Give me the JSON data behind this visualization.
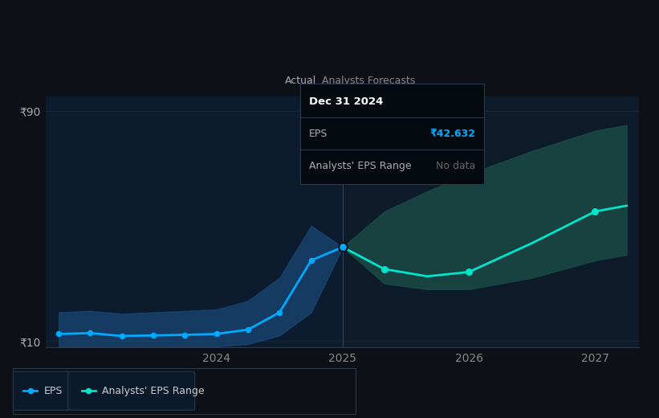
{
  "bg_color": "#0d1117",
  "plot_bg_color": "#0d1b2a",
  "grid_color": "#1e2d3d",
  "divider_x": 2025.0,
  "actual_x": [
    2022.75,
    2023.0,
    2023.25,
    2023.5,
    2023.75,
    2024.0,
    2024.25,
    2024.5,
    2024.75,
    2025.0
  ],
  "actual_y": [
    12.5,
    12.8,
    11.8,
    12.0,
    12.2,
    12.5,
    14.0,
    20.0,
    38.0,
    42.632
  ],
  "actual_band_upper": [
    20.0,
    20.5,
    19.5,
    20.0,
    20.5,
    21.0,
    24.0,
    32.0,
    50.0,
    42.632
  ],
  "actual_band_lower": [
    8.0,
    8.2,
    7.5,
    7.8,
    8.0,
    8.2,
    9.0,
    12.0,
    20.0,
    42.632
  ],
  "forecast_x": [
    2025.0,
    2025.33,
    2025.67,
    2026.0,
    2026.5,
    2027.0,
    2027.25
  ],
  "forecast_y": [
    42.632,
    35.0,
    32.5,
    34.0,
    44.0,
    55.0,
    57.0
  ],
  "forecast_band_upper": [
    42.632,
    55.0,
    62.0,
    68.0,
    76.0,
    83.0,
    85.0
  ],
  "forecast_band_lower": [
    42.632,
    30.0,
    28.0,
    28.0,
    32.0,
    38.0,
    40.0
  ],
  "eps_color": "#00aaff",
  "eps_band_color": "#1a4a7a",
  "forecast_color": "#00e5cc",
  "forecast_band_color": "#1a4a44",
  "ylim": [
    8,
    95
  ],
  "xlim": [
    2022.65,
    2027.35
  ],
  "ytick_labels": [
    "₹90",
    "₹10"
  ],
  "ytick_vals": [
    90,
    10
  ],
  "xtick_labels": [
    "2024",
    "2025",
    "2026",
    "2027"
  ],
  "xtick_vals": [
    2024,
    2025,
    2026,
    2027
  ],
  "actual_label": "Actual",
  "forecast_label": "Analysts Forecasts",
  "tooltip_title": "Dec 31 2024",
  "tooltip_eps_label": "EPS",
  "tooltip_eps_value": "₹42.632",
  "tooltip_range_label": "Analysts' EPS Range",
  "tooltip_range_value": "No data",
  "tooltip_bg": "#050a10",
  "tooltip_border": "#2a3a4a",
  "tooltip_eps_color": "#00aaff",
  "tooltip_text_color": "#aaaaaa",
  "tooltip_title_color": "#ffffff",
  "legend_eps_label": "EPS",
  "legend_range_label": "Analysts' EPS Range"
}
